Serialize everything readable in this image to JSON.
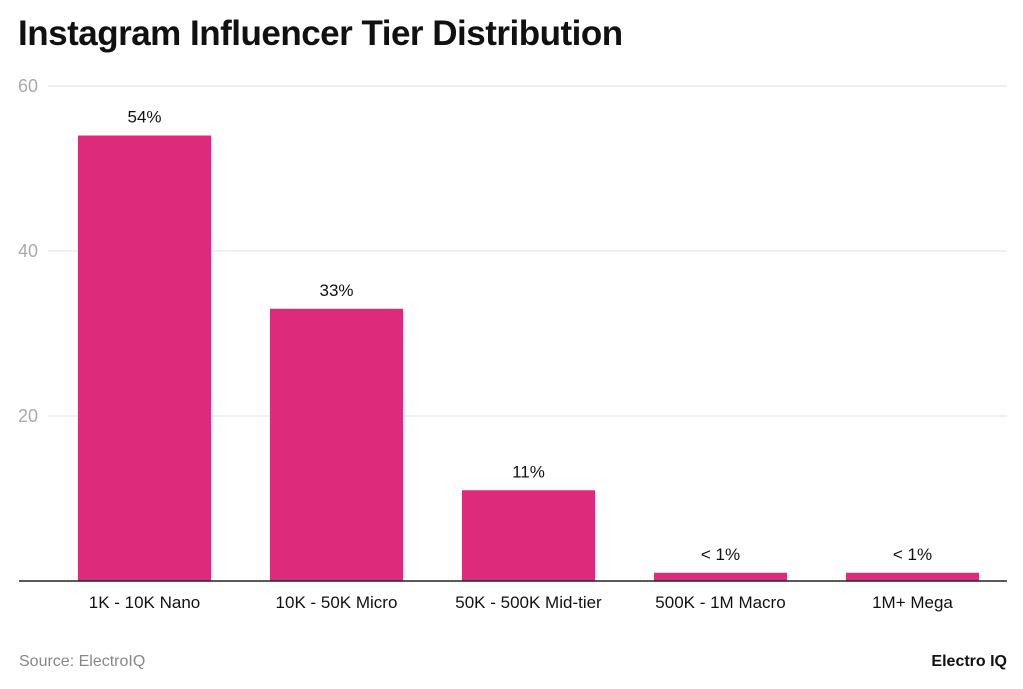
{
  "chart_data": {
    "type": "bar",
    "title": "Instagram Influencer Tier Distribution",
    "categories": [
      "1K - 10K Nano",
      "10K - 50K Micro",
      "50K - 500K Mid-tier",
      "500K - 1M Macro",
      "1M+ Mega"
    ],
    "values": [
      54,
      33,
      11,
      1,
      1
    ],
    "data_labels": [
      "54%",
      "33%",
      "11%",
      "< 1%",
      "< 1%"
    ],
    "xlabel": "",
    "ylabel": "",
    "ylim": [
      0,
      60
    ],
    "yticks": [
      20,
      40,
      60
    ],
    "grid": true,
    "bar_color": "#DD2A7B"
  },
  "footer": {
    "source": "Source: ElectroIQ",
    "brand": "Electro IQ"
  }
}
